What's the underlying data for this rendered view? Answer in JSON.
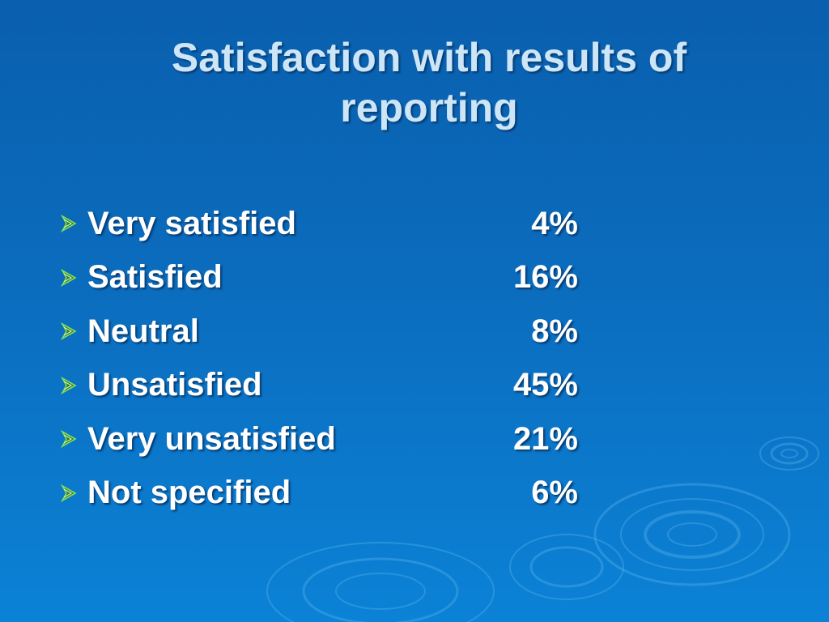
{
  "slide": {
    "title": "Satisfaction with results of reporting",
    "background_color": "#0b6cbd",
    "text_color": "#ffffff",
    "title_color": "#cde6f7",
    "bullet_color": "#7fe05a",
    "bullet_icon": "arrow-bullet-icon"
  },
  "items": [
    {
      "label": "Very satisfied",
      "value": "4%"
    },
    {
      "label": "Satisfied",
      "value": "16%"
    },
    {
      "label": "Neutral",
      "value": "8%"
    },
    {
      "label": "Unsatisfied",
      "value": "45%"
    },
    {
      "label": "Very unsatisfied",
      "value": "21%"
    },
    {
      "label": "Not specified",
      "value": "6%"
    }
  ]
}
